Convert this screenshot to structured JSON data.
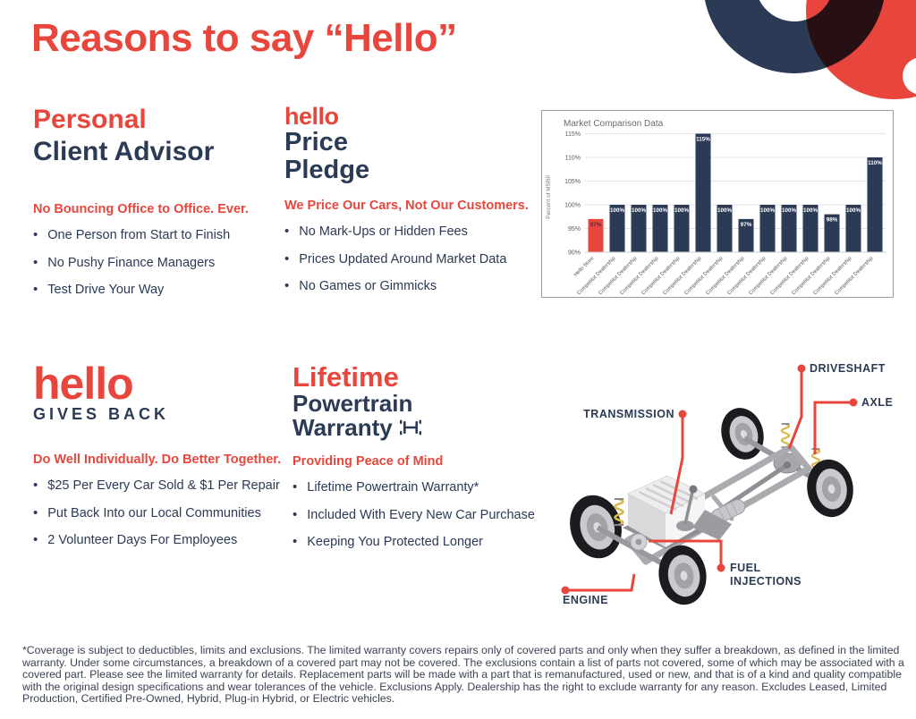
{
  "brand": {
    "accent_red": "#E8463C",
    "navy": "#2B3A55"
  },
  "page_title": "Reasons to say “Hello”",
  "sections": {
    "personal": {
      "heading_accent": "Personal",
      "heading_line2": "Client Advisor",
      "subhead": "No Bouncing Office to Office. Ever.",
      "bullets": [
        "One Person from Start to Finish",
        "No Pushy Finance Managers",
        "Test Drive Your Way"
      ]
    },
    "price": {
      "heading_accent": "hello",
      "heading_line2": "Price",
      "heading_line3": "Pledge",
      "subhead": "We Price Our Cars, Not Our Customers.",
      "bullets": [
        "No Mark-Ups or Hidden Fees",
        "Prices Updated Around Market Data",
        "No Games or Gimmicks"
      ]
    },
    "gives": {
      "heading_accent": "hello",
      "heading_line2": "GIVES BACK",
      "subhead": "Do Well Individually. Do Better Together.",
      "bullets": [
        "$25 Per Every Car Sold & $1 Per Repair",
        "Put Back Into our Local Communities",
        "2 Volunteer Days For Employees"
      ]
    },
    "warranty": {
      "heading_accent": "Lifetime",
      "heading_line2": "Powertrain",
      "heading_line3": "Warranty",
      "subhead": "Providing Peace of Mind",
      "bullets": [
        "Lifetime Powertrain Warranty*",
        "Included With Every New Car Purchase",
        "Keeping You Protected Longer"
      ]
    }
  },
  "chart_data": {
    "type": "bar",
    "title": "Market Comparison Data",
    "xlabel": "",
    "ylabel": "Percent of MSRP",
    "ylim": [
      90,
      115
    ],
    "yticks": [
      90,
      95,
      100,
      105,
      110,
      115
    ],
    "grid": true,
    "legend": "none",
    "categories": [
      "Hello Store",
      "Competitor Dealership",
      "Competitor Dealership",
      "Competitor Dealership",
      "Competitor Dealership",
      "Competitor Dealership",
      "Competitor Dealership",
      "Competitor Dealership",
      "Competitor Dealership",
      "Competitor Dealership",
      "Competitor Dealership",
      "Competitor Dealership",
      "Competitor Dealership",
      "Competitor Dealership"
    ],
    "values": [
      97,
      100,
      100,
      100,
      100,
      115,
      100,
      97,
      100,
      100,
      100,
      98,
      100,
      110
    ],
    "value_suffix": "%",
    "bar_color": "#2B3A55",
    "accent_color": "#E8463C"
  },
  "diagram": {
    "labels": {
      "driveshaft": "DRIVESHAFT",
      "axle": "AXLE",
      "transmission": "TRANSMISSION",
      "fuel_line1": "FUEL",
      "fuel_line2": "INJECTIONS",
      "engine": "ENGINE"
    }
  },
  "disclaimer": "*Coverage is subject to deductibles, limits and exclusions. The limited warranty covers repairs only of covered parts and only when they suffer a breakdown, as defined in the limited warranty. Under some circumstances, a breakdown of a covered part may not be covered. The exclusions contain a list of parts not covered, some of which may be associated with a covered part. Please see the limited warranty for details. Replacement parts will be made with a part that is remanufactured, used or new, and that is of a kind and quality compatible with the original design specifications and wear tolerances of the vehicle. Exclusions Apply. Dealership has the right to exclude warranty for any reason. Excludes Leased, Limited Production, Certified Pre-Owned, Hybrid, Plug-in Hybrid, or Electric vehicles."
}
